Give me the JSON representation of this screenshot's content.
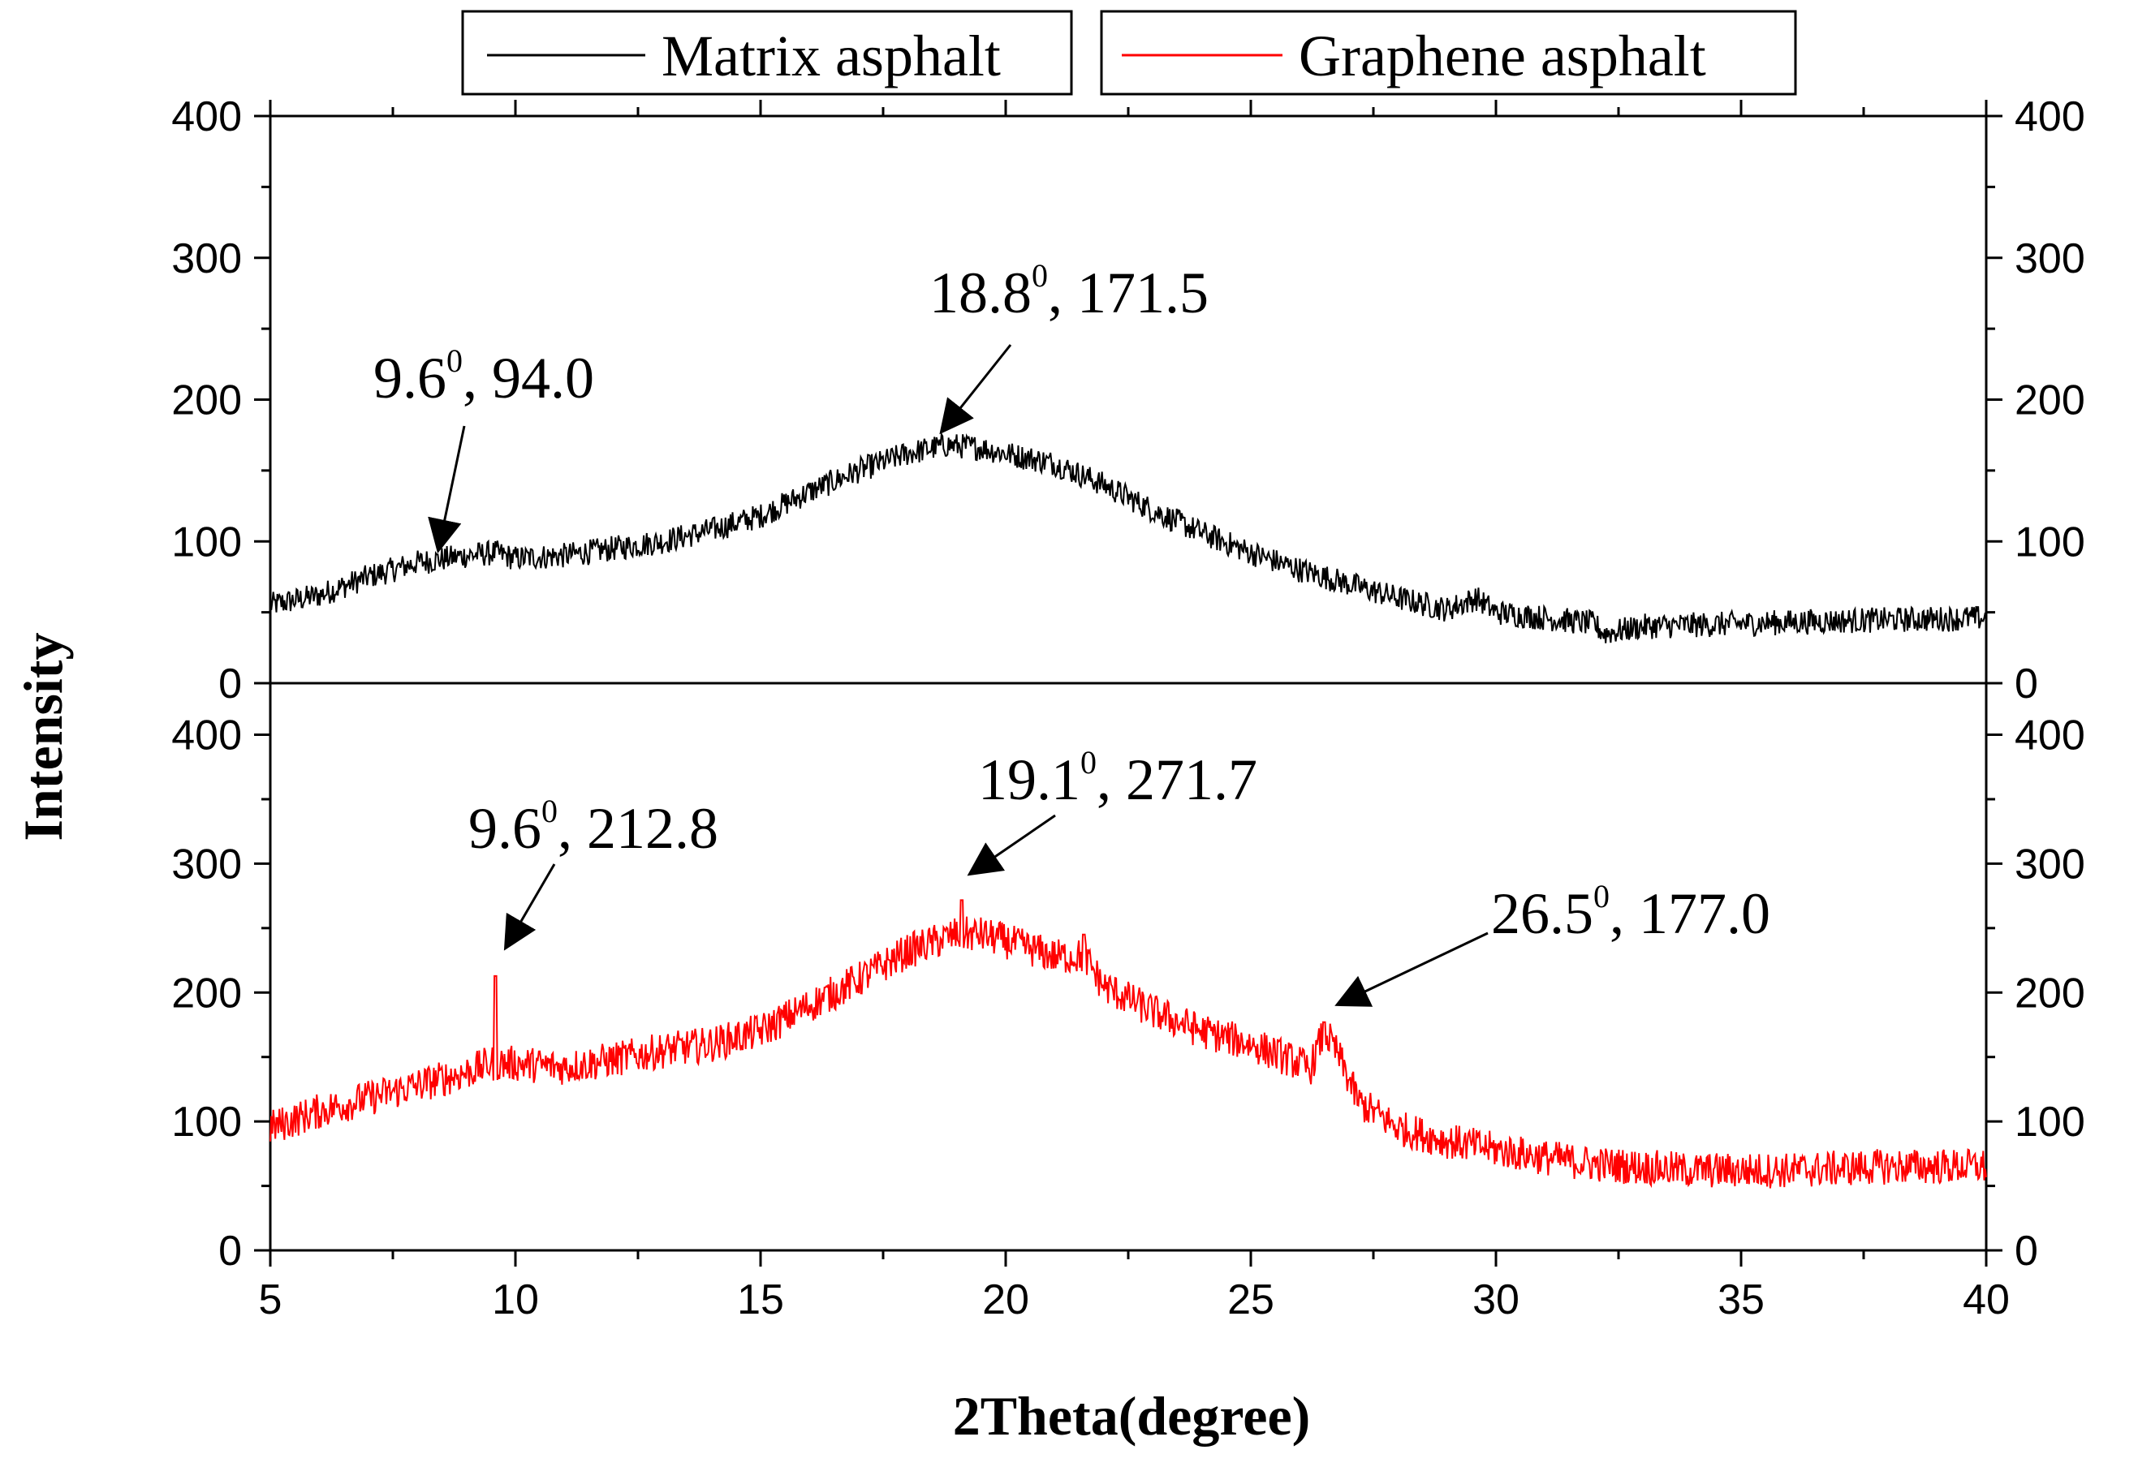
{
  "chart_data": {
    "type": "line",
    "xlabel": "2Theta(degree)",
    "ylabel": "Intensity",
    "xlim": [
      5,
      40
    ],
    "x_ticks": [
      5,
      10,
      15,
      20,
      25,
      30,
      35,
      40
    ],
    "legend": {
      "placement": "top-center",
      "entries": [
        {
          "name": "Matrix asphalt",
          "color": "#000000"
        },
        {
          "name": "Graphene asphalt",
          "color": "#ff0000"
        }
      ]
    },
    "panels": [
      {
        "id": "top",
        "series_name": "Matrix asphalt",
        "color": "#000000",
        "ylim": [
          0,
          400
        ],
        "y_ticks": [
          0,
          100,
          200,
          300,
          400
        ],
        "profile": [
          [
            5,
            55
          ],
          [
            6,
            62
          ],
          [
            7,
            75
          ],
          [
            8,
            85
          ],
          [
            9,
            90
          ],
          [
            9.6,
            92
          ],
          [
            10,
            88
          ],
          [
            11,
            90
          ],
          [
            12,
            95
          ],
          [
            13,
            100
          ],
          [
            14,
            108
          ],
          [
            15,
            118
          ],
          [
            16,
            135
          ],
          [
            17,
            150
          ],
          [
            18,
            162
          ],
          [
            18.8,
            168
          ],
          [
            19.5,
            166
          ],
          [
            20,
            162
          ],
          [
            21,
            155
          ],
          [
            22,
            140
          ],
          [
            23,
            122
          ],
          [
            24,
            106
          ],
          [
            25,
            92
          ],
          [
            26,
            80
          ],
          [
            27,
            70
          ],
          [
            28,
            60
          ],
          [
            29,
            52
          ],
          [
            29.6,
            60
          ],
          [
            30,
            50
          ],
          [
            31,
            46
          ],
          [
            32,
            42
          ],
          [
            32.2,
            35
          ],
          [
            33,
            40
          ],
          [
            35,
            42
          ],
          [
            37,
            44
          ],
          [
            40,
            46
          ]
        ],
        "noise": 9,
        "annotations": [
          {
            "base": "9.6",
            "sup": "0",
            "rest": ", 94.0",
            "x": 9.6,
            "y": 94.0
          },
          {
            "base": "18.8",
            "sup": "0",
            "rest": ", 171.5",
            "x": 18.8,
            "y": 171.5
          }
        ]
      },
      {
        "id": "bottom",
        "series_name": "Graphene asphalt",
        "color": "#ff0000",
        "ylim": [
          0,
          440
        ],
        "y_ticks": [
          0,
          100,
          200,
          300,
          400
        ],
        "profile": [
          [
            5,
            95
          ],
          [
            6,
            108
          ],
          [
            7,
            118
          ],
          [
            8,
            128
          ],
          [
            9,
            138
          ],
          [
            9.5,
            145
          ],
          [
            10,
            145
          ],
          [
            11,
            142
          ],
          [
            12,
            148
          ],
          [
            13,
            155
          ],
          [
            14,
            160
          ],
          [
            15,
            170
          ],
          [
            16,
            190
          ],
          [
            17,
            210
          ],
          [
            18,
            232
          ],
          [
            19,
            245
          ],
          [
            19.5,
            245
          ],
          [
            20,
            240
          ],
          [
            21,
            228
          ],
          [
            21.6,
            228
          ],
          [
            22,
            205
          ],
          [
            23,
            185
          ],
          [
            24,
            170
          ],
          [
            25,
            160
          ],
          [
            26,
            145
          ],
          [
            26.2,
            140
          ],
          [
            26.5,
            170
          ],
          [
            26.8,
            150
          ],
          [
            27.2,
            115
          ],
          [
            28,
            95
          ],
          [
            29,
            85
          ],
          [
            30,
            78
          ],
          [
            31,
            72
          ],
          [
            32,
            67
          ],
          [
            34,
            62
          ],
          [
            36,
            62
          ],
          [
            38,
            65
          ],
          [
            40,
            65
          ]
        ],
        "noise": 14,
        "spikes": [
          {
            "x": 9.6,
            "y": 212.8
          },
          {
            "x": 19.1,
            "y": 271.7
          },
          {
            "x": 26.5,
            "y": 177.0
          },
          {
            "x": 21.6,
            "y": 245
          }
        ],
        "annotations": [
          {
            "base": "9.6",
            "sup": "0",
            "rest": ", 212.8",
            "x": 9.6,
            "y": 212.8
          },
          {
            "base": "19.1",
            "sup": "0",
            "rest": ", 271.7",
            "x": 19.1,
            "y": 271.7
          },
          {
            "base": "26.5",
            "sup": "0",
            "rest": ", 177.0",
            "x": 26.5,
            "y": 177.0
          }
        ]
      }
    ]
  }
}
